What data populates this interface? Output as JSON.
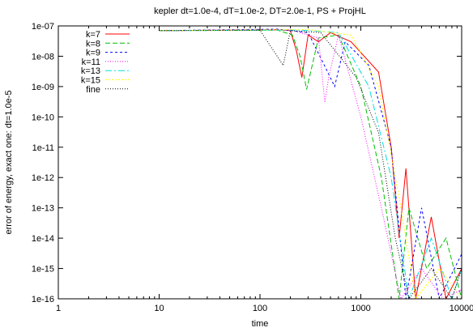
{
  "chart_data": {
    "type": "line",
    "title": "kepler dt=1.0e-4, dT=1.0e-2, DT=2.0e-1, PS + ProjHL",
    "xlabel": "time",
    "ylabel": "error of energy, exact one: dt=1.0e-5",
    "xscale": "log",
    "yscale": "log",
    "xlim": [
      1,
      10000
    ],
    "ylim": [
      1e-16,
      1e-07
    ],
    "x_ticks": [
      1,
      10,
      100,
      1000,
      10000
    ],
    "x_tick_labels": [
      "1",
      "10",
      "100",
      "1000",
      "10000"
    ],
    "y_ticks": [
      1e-16,
      1e-15,
      1e-14,
      1e-13,
      1e-12,
      1e-11,
      1e-10,
      1e-09,
      1e-08,
      1e-07
    ],
    "y_tick_labels": [
      "1e-16",
      "1e-15",
      "1e-14",
      "1e-13",
      "1e-12",
      "1e-11",
      "1e-10",
      "1e-09",
      "1e-08",
      "1e-07"
    ],
    "grid": false,
    "legend_position": "top-left",
    "series": [
      {
        "name": "k=7",
        "color": "#ff0000",
        "dash": "solid",
        "points": [
          [
            10,
            7e-08
          ],
          [
            150,
            7.5e-08
          ],
          [
            200,
            7e-08
          ],
          [
            230,
            1.5e-08
          ],
          [
            260,
            2e-09
          ],
          [
            300,
            5e-08
          ],
          [
            380,
            3e-08
          ],
          [
            500,
            6e-08
          ],
          [
            800,
            3e-08
          ],
          [
            1500,
            3e-09
          ],
          [
            2000,
            1e-11
          ],
          [
            2400,
            1e-14
          ],
          [
            2800,
            2e-12
          ],
          [
            3500,
            1e-16
          ],
          [
            5000,
            5e-14
          ],
          [
            7000,
            1e-16
          ],
          [
            10000,
            1e-15
          ]
        ]
      },
      {
        "name": "k=8",
        "color": "#00c000",
        "dash": "6,3",
        "points": [
          [
            10,
            7e-08
          ],
          [
            150,
            7.2e-08
          ],
          [
            210,
            5e-08
          ],
          [
            250,
            1e-08
          ],
          [
            290,
            8e-10
          ],
          [
            380,
            4e-08
          ],
          [
            600,
            5e-08
          ],
          [
            1000,
            1e-09
          ],
          [
            1600,
            1e-12
          ],
          [
            2400,
            1e-16
          ],
          [
            3000,
            1e-13
          ],
          [
            4500,
            1e-15
          ],
          [
            7000,
            1e-14
          ],
          [
            10000,
            1e-16
          ]
        ]
      },
      {
        "name": "k=9",
        "color": "#0000ff",
        "dash": "3,3",
        "points": [
          [
            10,
            7e-08
          ],
          [
            150,
            7.8e-08
          ],
          [
            300,
            6e-08
          ],
          [
            450,
            4e-09
          ],
          [
            550,
            1e-09
          ],
          [
            700,
            3e-08
          ],
          [
            1200,
            5e-09
          ],
          [
            2000,
            1e-11
          ],
          [
            2800,
            1e-16
          ],
          [
            4000,
            1e-13
          ],
          [
            6000,
            1e-16
          ],
          [
            10000,
            3e-15
          ]
        ]
      },
      {
        "name": "k=11",
        "color": "#ff00ff",
        "dash": "1,2",
        "points": [
          [
            10,
            7e-08
          ],
          [
            200,
            7.5e-08
          ],
          [
            380,
            4e-08
          ],
          [
            440,
            3e-10
          ],
          [
            480,
            2e-09
          ],
          [
            600,
            5e-08
          ],
          [
            1000,
            1e-10
          ],
          [
            1600,
            1e-13
          ],
          [
            2500,
            1e-16
          ],
          [
            4000,
            1e-15
          ],
          [
            6500,
            1e-16
          ],
          [
            10000,
            2e-16
          ]
        ]
      },
      {
        "name": "k=13",
        "color": "#00e0e0",
        "dash": "8,3,2,3",
        "points": [
          [
            10,
            7e-08
          ],
          [
            250,
            7.3e-08
          ],
          [
            600,
            6e-08
          ],
          [
            1200,
            1e-09
          ],
          [
            2000,
            1e-12
          ],
          [
            3000,
            1e-16
          ],
          [
            5000,
            1e-14
          ],
          [
            8000,
            1e-16
          ],
          [
            10000,
            1e-15
          ]
        ]
      },
      {
        "name": "k=15",
        "color": "#ffff00",
        "dash": "2,2",
        "points": [
          [
            10,
            7e-08
          ],
          [
            300,
            7.6e-08
          ],
          [
            800,
            5e-08
          ],
          [
            1500,
            1e-09
          ],
          [
            2500,
            1e-13
          ],
          [
            3500,
            1e-16
          ],
          [
            6000,
            1e-15
          ],
          [
            10000,
            1e-16
          ]
        ]
      },
      {
        "name": "fine",
        "color": "#000000",
        "dash": "1,2",
        "points": [
          [
            10,
            7e-08
          ],
          [
            100,
            7.2e-08
          ],
          [
            170,
            5e-09
          ],
          [
            200,
            7e-08
          ],
          [
            400,
            6e-08
          ],
          [
            900,
            2e-09
          ],
          [
            1500,
            3e-11
          ],
          [
            2200,
            1e-14
          ],
          [
            3000,
            1e-16
          ],
          [
            5000,
            1e-15
          ],
          [
            8000,
            1e-16
          ],
          [
            10000,
            1e-15
          ]
        ]
      }
    ]
  }
}
